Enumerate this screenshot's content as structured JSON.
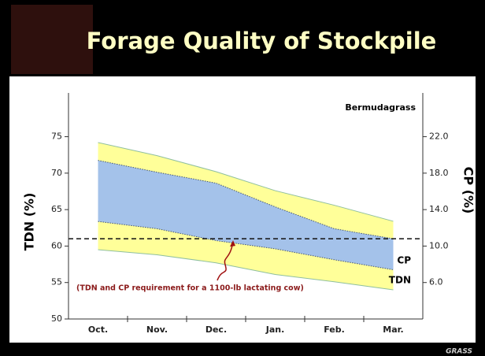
{
  "slide": {
    "title": "Forage Quality of Stockpile",
    "logo": "GRASS"
  },
  "chart_data": {
    "type": "band",
    "label": "Bermudagrass",
    "ylabel": "TDN (%)",
    "y2label": "CP (%)",
    "annotation": "(TDN and CP requirement for a 1100-lb lactating cow)",
    "requirement": 61,
    "categories": [
      "Oct.",
      "Nov.",
      "Dec.",
      "Jan.",
      "Feb.",
      "Mar."
    ],
    "series": [
      {
        "name": "TDN",
        "color": "#ffff99",
        "upper": [
          74.2,
          72.4,
          70.2,
          67.6,
          65.6,
          63.4
        ],
        "lower": [
          59.5,
          58.8,
          57.7,
          56.1,
          55.1,
          54.0
        ]
      },
      {
        "name": "CP",
        "color": "#a4c2ea",
        "axis": "y2",
        "upper": [
          19.4,
          18.1,
          16.9,
          14.3,
          11.9,
          10.8
        ],
        "lower": [
          12.7,
          11.9,
          10.6,
          9.7,
          8.5,
          7.4
        ]
      }
    ],
    "ylim": [
      50,
      81
    ],
    "yticks": [
      50,
      55,
      60,
      65,
      70,
      75
    ],
    "y2lim": [
      2,
      26.8
    ],
    "y2ticks": [
      {
        "value": 6,
        "label": "6.0"
      },
      {
        "value": 10,
        "label": "10.0"
      },
      {
        "value": 14,
        "label": "14.0"
      },
      {
        "value": 18,
        "label": "18.0"
      },
      {
        "value": 22,
        "label": "22.0"
      }
    ]
  }
}
